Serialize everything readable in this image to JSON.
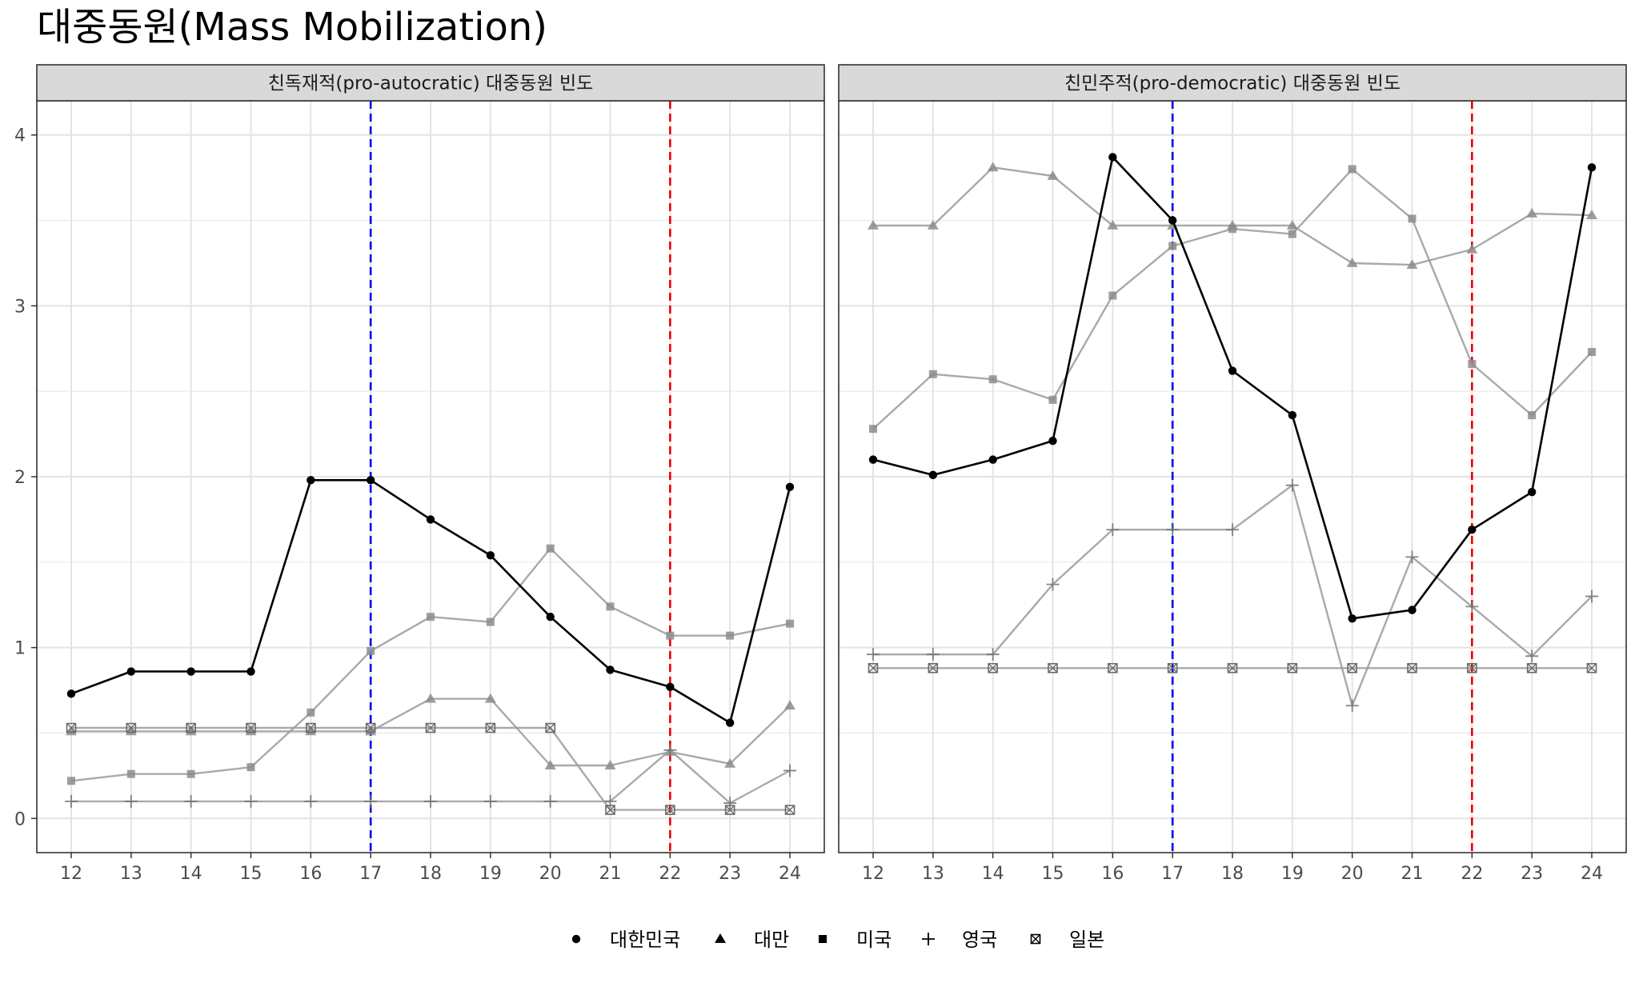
{
  "chart_data": {
    "type": "line",
    "title": "대중동원(Mass Mobilization)",
    "x": [
      12,
      13,
      14,
      15,
      16,
      17,
      18,
      19,
      20,
      21,
      22,
      23,
      24
    ],
    "ylim": [
      -0.2,
      4.2
    ],
    "y_ticks": [
      0,
      1,
      2,
      3,
      4
    ],
    "grid": true,
    "legend_position": "bottom",
    "legend": [
      "대한민국",
      "대만",
      "미국",
      "영국",
      "일본"
    ],
    "reference_lines": [
      {
        "x": 17,
        "color": "#0000ee",
        "style": "dashed"
      },
      {
        "x": 22,
        "color": "#ee0000",
        "style": "dashed"
      }
    ],
    "panels": [
      {
        "title": "친독재적(pro-autocratic) 대중동원 빈도",
        "series": [
          {
            "name": "대한민국",
            "marker": "circle",
            "values": [
              0.73,
              0.86,
              0.86,
              0.86,
              1.98,
              1.98,
              1.75,
              1.54,
              1.18,
              0.87,
              0.77,
              0.56,
              1.94
            ]
          },
          {
            "name": "대만",
            "marker": "triangle",
            "values": [
              0.51,
              0.51,
              0.51,
              0.51,
              0.51,
              0.51,
              0.7,
              0.7,
              0.31,
              0.31,
              0.39,
              0.32,
              0.66
            ]
          },
          {
            "name": "미국",
            "marker": "square",
            "values": [
              0.22,
              0.26,
              0.26,
              0.3,
              0.62,
              0.98,
              1.18,
              1.15,
              1.58,
              1.24,
              1.07,
              1.07,
              1.14
            ]
          },
          {
            "name": "영국",
            "marker": "plus",
            "values": [
              0.1,
              0.1,
              0.1,
              0.1,
              0.1,
              0.1,
              0.1,
              0.1,
              0.1,
              0.1,
              0.4,
              0.09,
              0.28
            ]
          },
          {
            "name": "일본",
            "marker": "boxcross",
            "values": [
              0.53,
              0.53,
              0.53,
              0.53,
              0.53,
              0.53,
              0.53,
              0.53,
              0.53,
              0.05,
              0.05,
              0.05,
              0.05
            ]
          }
        ]
      },
      {
        "title": "친민주적(pro-democratic) 대중동원 빈도",
        "series": [
          {
            "name": "대한민국",
            "marker": "circle",
            "values": [
              2.1,
              2.01,
              2.1,
              2.21,
              3.87,
              3.5,
              2.62,
              2.36,
              1.17,
              1.22,
              1.69,
              1.91,
              3.81
            ]
          },
          {
            "name": "대만",
            "marker": "triangle",
            "values": [
              3.47,
              3.47,
              3.81,
              3.76,
              3.47,
              3.47,
              3.47,
              3.47,
              3.25,
              3.24,
              3.33,
              3.54,
              3.53
            ]
          },
          {
            "name": "미국",
            "marker": "square",
            "values": [
              2.28,
              2.6,
              2.57,
              2.45,
              3.06,
              3.35,
              3.45,
              3.42,
              3.8,
              3.51,
              2.66,
              2.36,
              2.73
            ]
          },
          {
            "name": "영국",
            "marker": "plus",
            "values": [
              0.96,
              0.96,
              0.96,
              1.37,
              1.69,
              1.69,
              1.69,
              1.95,
              0.66,
              1.53,
              1.24,
              0.95,
              1.3
            ]
          },
          {
            "name": "일본",
            "marker": "boxcross",
            "values": [
              0.88,
              0.88,
              0.88,
              0.88,
              0.88,
              0.88,
              0.88,
              0.88,
              0.88,
              0.88,
              0.88,
              0.88,
              0.88
            ]
          }
        ]
      }
    ]
  }
}
